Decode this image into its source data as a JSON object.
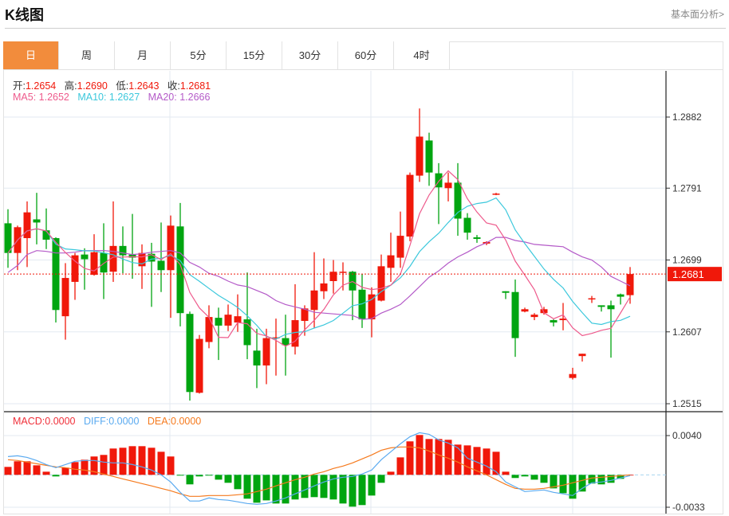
{
  "header": {
    "title": "K线图",
    "link": "基本面分析>"
  },
  "tabs": [
    {
      "label": "日",
      "active": true
    },
    {
      "label": "周"
    },
    {
      "label": "月"
    },
    {
      "label": "5分"
    },
    {
      "label": "15分"
    },
    {
      "label": "30分"
    },
    {
      "label": "60分"
    },
    {
      "label": "4时"
    }
  ],
  "ohlc": {
    "open_label": "开:",
    "open": "1.2654",
    "high_label": "高:",
    "high": "1.2690",
    "low_label": "低:",
    "low": "1.2643",
    "close_label": "收:",
    "close": "1.2681"
  },
  "ma": {
    "ma5_label": "MA5: ",
    "ma5": "1.2652",
    "ma10_label": "MA10: ",
    "ma10": "1.2627",
    "ma20_label": "MA20: ",
    "ma20": "1.2666"
  },
  "macd_info": {
    "macd_label": "MACD:",
    "macd": "0.0000",
    "diff_label": "DIFF:",
    "diff": "0.0000",
    "dea_label": "DEA:",
    "dea": "0.0000"
  },
  "colors": {
    "up": "#f0180a",
    "down": "#00a510",
    "ma5": "#ee5a8c",
    "ma10": "#3cc8dc",
    "ma20": "#b45ac8",
    "diff": "#5aaaf0",
    "dea": "#f57a1e",
    "active_tab": "#f28c3c"
  },
  "chart_data": [
    {
      "type": "candlestick",
      "title": "K线图",
      "y_ticks": [
        "1.2882",
        "1.2791",
        "1.2699",
        "1.2607",
        "1.2515"
      ],
      "ylim": [
        1.2515,
        1.2882
      ],
      "last_price": "1.2681",
      "candles_ohlc": [
        [
          1.2746,
          1.2764,
          1.2689,
          1.2708
        ],
        [
          1.2708,
          1.2743,
          1.2686,
          1.2741
        ],
        [
          1.2727,
          1.2774,
          1.269,
          1.276
        ],
        [
          1.2751,
          1.2785,
          1.2719,
          1.2747
        ],
        [
          1.2737,
          1.2765,
          1.2713,
          1.2725
        ],
        [
          1.2727,
          1.2728,
          1.2619,
          1.2635
        ],
        [
          1.2627,
          1.2695,
          1.2597,
          1.2676
        ],
        [
          1.2671,
          1.2708,
          1.2648,
          1.2705
        ],
        [
          1.2706,
          1.2714,
          1.2661,
          1.27
        ],
        [
          1.268,
          1.2732,
          1.2679,
          1.2709
        ],
        [
          1.2708,
          1.2746,
          1.2649,
          1.2683
        ],
        [
          1.2684,
          1.2774,
          1.2671,
          1.2717
        ],
        [
          1.2717,
          1.2742,
          1.2682,
          1.2705
        ],
        [
          1.2706,
          1.2758,
          1.2675,
          1.2702
        ],
        [
          1.2691,
          1.2719,
          1.2662,
          1.2708
        ],
        [
          1.2707,
          1.2721,
          1.2639,
          1.2697
        ],
        [
          1.2698,
          1.2747,
          1.2658,
          1.2686
        ],
        [
          1.2686,
          1.2756,
          1.2625,
          1.2743
        ],
        [
          1.2742,
          1.2772,
          1.2614,
          1.2631
        ],
        [
          1.263,
          1.2633,
          1.2519,
          1.253
        ],
        [
          1.2529,
          1.2603,
          1.2528,
          1.2598
        ],
        [
          1.2594,
          1.2641,
          1.2586,
          1.2626
        ],
        [
          1.2625,
          1.2638,
          1.2571,
          1.2615
        ],
        [
          1.2615,
          1.2642,
          1.2608,
          1.2629
        ],
        [
          1.2619,
          1.2655,
          1.2607,
          1.2627
        ],
        [
          1.2623,
          1.2683,
          1.2572,
          1.259
        ],
        [
          1.2583,
          1.2611,
          1.2535,
          1.2564
        ],
        [
          1.2564,
          1.2611,
          1.254,
          1.2599
        ],
        [
          1.2599,
          1.2624,
          1.2551,
          1.26
        ],
        [
          1.2599,
          1.2629,
          1.2551,
          1.259
        ],
        [
          1.2588,
          1.2668,
          1.2578,
          1.2622
        ],
        [
          1.2621,
          1.2641,
          1.2602,
          1.2637
        ],
        [
          1.2635,
          1.2709,
          1.2612,
          1.266
        ],
        [
          1.2659,
          1.2701,
          1.2649,
          1.2669
        ],
        [
          1.2672,
          1.2699,
          1.2656,
          1.2684
        ],
        [
          1.2683,
          1.2696,
          1.266,
          1.2684
        ],
        [
          1.2684,
          1.2685,
          1.2622,
          1.266
        ],
        [
          1.2661,
          1.2681,
          1.2612,
          1.2623
        ],
        [
          1.2623,
          1.2664,
          1.26,
          1.2655
        ],
        [
          1.2647,
          1.2706,
          1.2646,
          1.2691
        ],
        [
          1.2689,
          1.2734,
          1.2671,
          1.2705
        ],
        [
          1.2702,
          1.2761,
          1.2689,
          1.273
        ],
        [
          1.2729,
          1.2811,
          1.2723,
          1.2808
        ],
        [
          1.2807,
          1.2893,
          1.2799,
          1.2857
        ],
        [
          1.2852,
          1.2862,
          1.2794,
          1.2811
        ],
        [
          1.281,
          1.2823,
          1.2745,
          1.2792
        ],
        [
          1.2791,
          1.2811,
          1.2774,
          1.2798
        ],
        [
          1.2798,
          1.2823,
          1.273,
          1.2752
        ],
        [
          1.2753,
          1.2759,
          1.2725,
          1.2734
        ],
        [
          1.2728,
          1.2731,
          1.2721,
          1.2726
        ],
        [
          1.272,
          1.2723,
          1.2718,
          1.2722
        ],
        [
          1.2783,
          1.2785,
          1.2782,
          1.2784
        ],
        [
          1.2659,
          1.2659,
          1.2649,
          1.2657
        ],
        [
          1.2658,
          1.2674,
          1.2575,
          1.2599
        ],
        [
          1.2633,
          1.2638,
          1.2632,
          1.2636
        ],
        [
          1.2626,
          1.2631,
          1.2622,
          1.2629
        ],
        [
          1.2631,
          1.2639,
          1.2629,
          1.2636
        ],
        [
          1.2622,
          1.2623,
          1.2614,
          1.2619
        ],
        [
          1.2622,
          1.2644,
          1.2609,
          1.2624
        ],
        [
          1.2548,
          1.2561,
          1.2546,
          1.2553
        ],
        [
          1.2576,
          1.2579,
          1.2569,
          1.2579
        ],
        [
          1.2649,
          1.2653,
          1.2644,
          1.265
        ],
        [
          1.2641,
          1.2641,
          1.2633,
          1.2639
        ],
        [
          1.2641,
          1.2647,
          1.2574,
          1.2636
        ],
        [
          1.2655,
          1.2656,
          1.2642,
          1.2652
        ],
        [
          1.2654,
          1.269,
          1.2643,
          1.2681
        ]
      ],
      "ma20": [
        1.2683,
        1.2692,
        1.2706,
        1.2711,
        1.271,
        1.2708,
        1.2708,
        1.2709,
        1.2711,
        1.2711,
        1.2711,
        1.271,
        1.2708,
        1.2706,
        1.2707,
        1.2709,
        1.271,
        1.2711,
        1.2708,
        1.2696,
        1.269,
        1.2682,
        1.2678,
        1.2672,
        1.2667,
        1.2665,
        1.266,
        1.2655,
        1.2647,
        1.2642,
        1.2639,
        1.2636,
        1.2632,
        1.2631,
        1.263,
        1.2629,
        1.2628,
        1.2623,
        1.2624,
        1.2631,
        1.2636,
        1.2642,
        1.2653,
        1.2665,
        1.2677,
        1.2685,
        1.2695,
        1.2703,
        1.2709,
        1.2716,
        1.2721,
        1.2728,
        1.2728,
        1.2724,
        1.2722,
        1.2719,
        1.2718,
        1.2717,
        1.2716,
        1.2709,
        1.2703,
        1.2699,
        1.269,
        1.2678,
        1.2672,
        1.2666
      ]
    },
    {
      "type": "macd",
      "y_ticks": [
        "0.0040",
        "-0.0033"
      ],
      "ylim": [
        -0.0033,
        0.004
      ],
      "macd": [
        0.00081,
        0.00138,
        0.00138,
        0.00097,
        0.00032,
        -0.00016,
        0.00073,
        0.0013,
        0.00154,
        0.00187,
        0.00203,
        0.00268,
        0.00276,
        0.00292,
        0.00292,
        0.00276,
        0.00235,
        0.00187,
        -8e-05,
        -0.00097,
        -0.00016,
        -8e-05,
        -0.00049,
        -0.00081,
        -0.00146,
        -0.00243,
        -0.00284,
        -0.0026,
        -0.00292,
        -0.00292,
        -0.00251,
        -0.00235,
        -0.00227,
        -0.00235,
        -0.00251,
        -0.00292,
        -0.00324,
        -0.00308,
        -0.00211,
        -0.00081,
        0.00032,
        0.00178,
        0.00341,
        0.00406,
        0.00365,
        0.00365,
        0.00357,
        0.00308,
        0.003,
        0.00284,
        0.00268,
        0.00235,
        0.00032,
        -0.00032,
        -0.00016,
        -0.00049,
        -0.00081,
        -0.00138,
        -0.00187,
        -0.00243,
        -0.0017,
        -0.00089,
        -0.00097,
        -0.00081,
        -0.00041,
        0.0
      ],
      "diff": [
        0.00186,
        0.00194,
        0.00178,
        0.00146,
        0.00105,
        0.00073,
        0.00105,
        0.00138,
        0.00146,
        0.00146,
        0.0013,
        0.00122,
        0.00122,
        0.00105,
        0.00081,
        0.00049,
        0.0,
        -0.00073,
        -0.00178,
        -0.00267,
        -0.00267,
        -0.00235,
        -0.00251,
        -0.00259,
        -0.00275,
        -0.00292,
        -0.003,
        -0.00292,
        -0.00267,
        -0.00235,
        -0.00194,
        -0.00154,
        -0.00113,
        -0.00073,
        -0.00041,
        -0.00024,
        -0.00016,
        8e-05,
        0.00049,
        0.00154,
        0.00235,
        0.00316,
        0.00389,
        0.00429,
        0.00413,
        0.00356,
        0.00324,
        0.00275,
        0.0017,
        0.0013,
        0.00089,
        0.00032,
        -0.00073,
        -0.00122,
        -0.0017,
        -0.00162,
        -0.00154,
        -0.00178,
        -0.00194,
        -0.00211,
        -0.00138,
        -0.00081,
        -0.00073,
        -0.00057,
        -0.00032,
        -8e-05
      ],
      "dea": [
        0.00154,
        0.00146,
        0.0013,
        0.00113,
        0.00097,
        0.00081,
        0.00073,
        0.00057,
        0.00049,
        0.00032,
        8e-05,
        -0.00016,
        -0.00041,
        -0.00065,
        -0.00089,
        -0.00113,
        -0.00138,
        -0.00162,
        -0.00194,
        -0.00219,
        -0.00219,
        -0.00211,
        -0.00211,
        -0.00211,
        -0.00203,
        -0.00194,
        -0.0017,
        -0.00146,
        -0.00113,
        -0.00081,
        -0.00049,
        -0.00024,
        8e-05,
        0.00032,
        0.00065,
        0.00089,
        0.00122,
        0.00162,
        0.00203,
        0.00251,
        0.00275,
        0.00284,
        0.00284,
        0.00275,
        0.00243,
        0.00203,
        0.0017,
        0.0013,
        0.00081,
        0.00041,
        0.0,
        -0.00049,
        -0.00097,
        -0.00138,
        -0.00146,
        -0.00146,
        -0.00138,
        -0.00122,
        -0.00105,
        -0.00081,
        -0.00057,
        -0.00032,
        -0.00024,
        -0.00016,
        -8e-05,
        0.0
      ]
    }
  ]
}
